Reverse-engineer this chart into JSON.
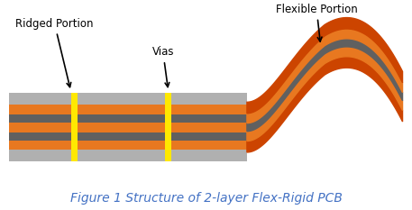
{
  "title": "Figure 1 Structure of 2-layer Flex-Rigid PCB",
  "title_color": "#4472C4",
  "title_fontsize": 10,
  "bg_color": "#ffffff",
  "label_ridged": "Ridged Portion",
  "label_vias": "Vias",
  "label_flexible": "Flexible Portion",
  "colors": {
    "gray_outer": "#b0b0b0",
    "gray_inner": "#606060",
    "orange": "#E87820",
    "yellow": "#FFE800",
    "dark_orange": "#CC5500",
    "orange_flex_dark": "#CC4400"
  }
}
